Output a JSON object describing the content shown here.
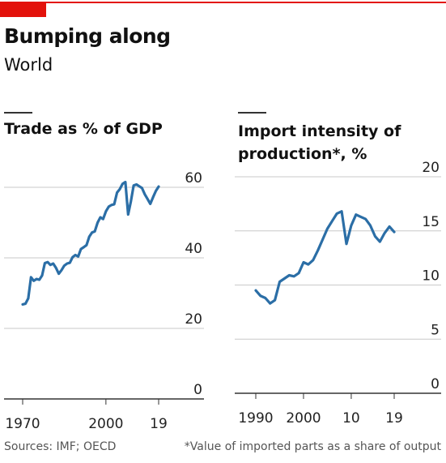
{
  "title": "Bumping along",
  "subtitle": "World",
  "source": "Sources: IMF; OECD",
  "footnote": "*Value of imported parts as a share of output",
  "chart_data": [
    {
      "type": "line",
      "title": "Trade as % of GDP",
      "x": [
        1970,
        1971,
        1972,
        1973,
        1974,
        1975,
        1976,
        1977,
        1978,
        1979,
        1980,
        1981,
        1982,
        1983,
        1984,
        1985,
        1986,
        1987,
        1988,
        1989,
        1990,
        1991,
        1992,
        1993,
        1994,
        1995,
        1996,
        1997,
        1998,
        1999,
        2000,
        2001,
        2002,
        2003,
        2004,
        2005,
        2006,
        2007,
        2008,
        2009,
        2010,
        2011,
        2012,
        2013,
        2014,
        2015,
        2016,
        2017,
        2018,
        2019
      ],
      "series": [
        {
          "color": "#2b6ea6",
          "values": [
            26.8,
            27.0,
            28.5,
            34.5,
            33.5,
            34.0,
            33.8,
            35.0,
            38.5,
            38.8,
            38.0,
            38.4,
            37.2,
            35.5,
            36.5,
            37.8,
            38.4,
            38.6,
            40.2,
            40.8,
            40.4,
            42.5,
            43.0,
            43.6,
            46.0,
            47.2,
            47.5,
            50.0,
            51.5,
            51.0,
            53.2,
            54.5,
            55.0,
            55.2,
            58.5,
            59.5,
            61.0,
            61.5,
            52.3,
            56.0,
            60.5,
            60.8,
            60.3,
            59.8,
            58.0,
            56.7,
            55.3,
            57.2,
            59.0,
            60.2
          ]
        }
      ],
      "xlim": [
        1970,
        2019
      ],
      "xticks": [
        1970,
        2000,
        {
          "value": 2019,
          "label": "19"
        }
      ],
      "ylim": [
        0,
        60
      ],
      "yticks": [
        0,
        20,
        40,
        60
      ],
      "grid": true
    },
    {
      "type": "line",
      "title": "Import intensity of production*, %",
      "x": [
        1990,
        1991,
        1992,
        1993,
        1994,
        1995,
        1996,
        1997,
        1998,
        1999,
        2000,
        2001,
        2002,
        2003,
        2004,
        2005,
        2006,
        2007,
        2008,
        2009,
        2010,
        2011,
        2012,
        2013,
        2014,
        2015,
        2016,
        2017,
        2018,
        2019
      ],
      "series": [
        {
          "color": "#2b6ea6",
          "values": [
            9.5,
            9.0,
            8.8,
            8.3,
            8.6,
            10.3,
            10.6,
            10.9,
            10.8,
            11.1,
            12.1,
            11.9,
            12.3,
            13.2,
            14.2,
            15.2,
            15.9,
            16.6,
            16.8,
            13.8,
            15.5,
            16.5,
            16.3,
            16.1,
            15.5,
            14.5,
            14.0,
            14.8,
            15.4,
            14.9
          ]
        }
      ],
      "xlim": [
        1990,
        2019
      ],
      "xticks": [
        1990,
        2000,
        {
          "value": 2010,
          "label": "10"
        },
        {
          "value": 2019,
          "label": "19"
        }
      ],
      "ylim": [
        0,
        20
      ],
      "yticks": [
        0,
        5,
        10,
        15,
        20
      ],
      "grid": true
    }
  ]
}
